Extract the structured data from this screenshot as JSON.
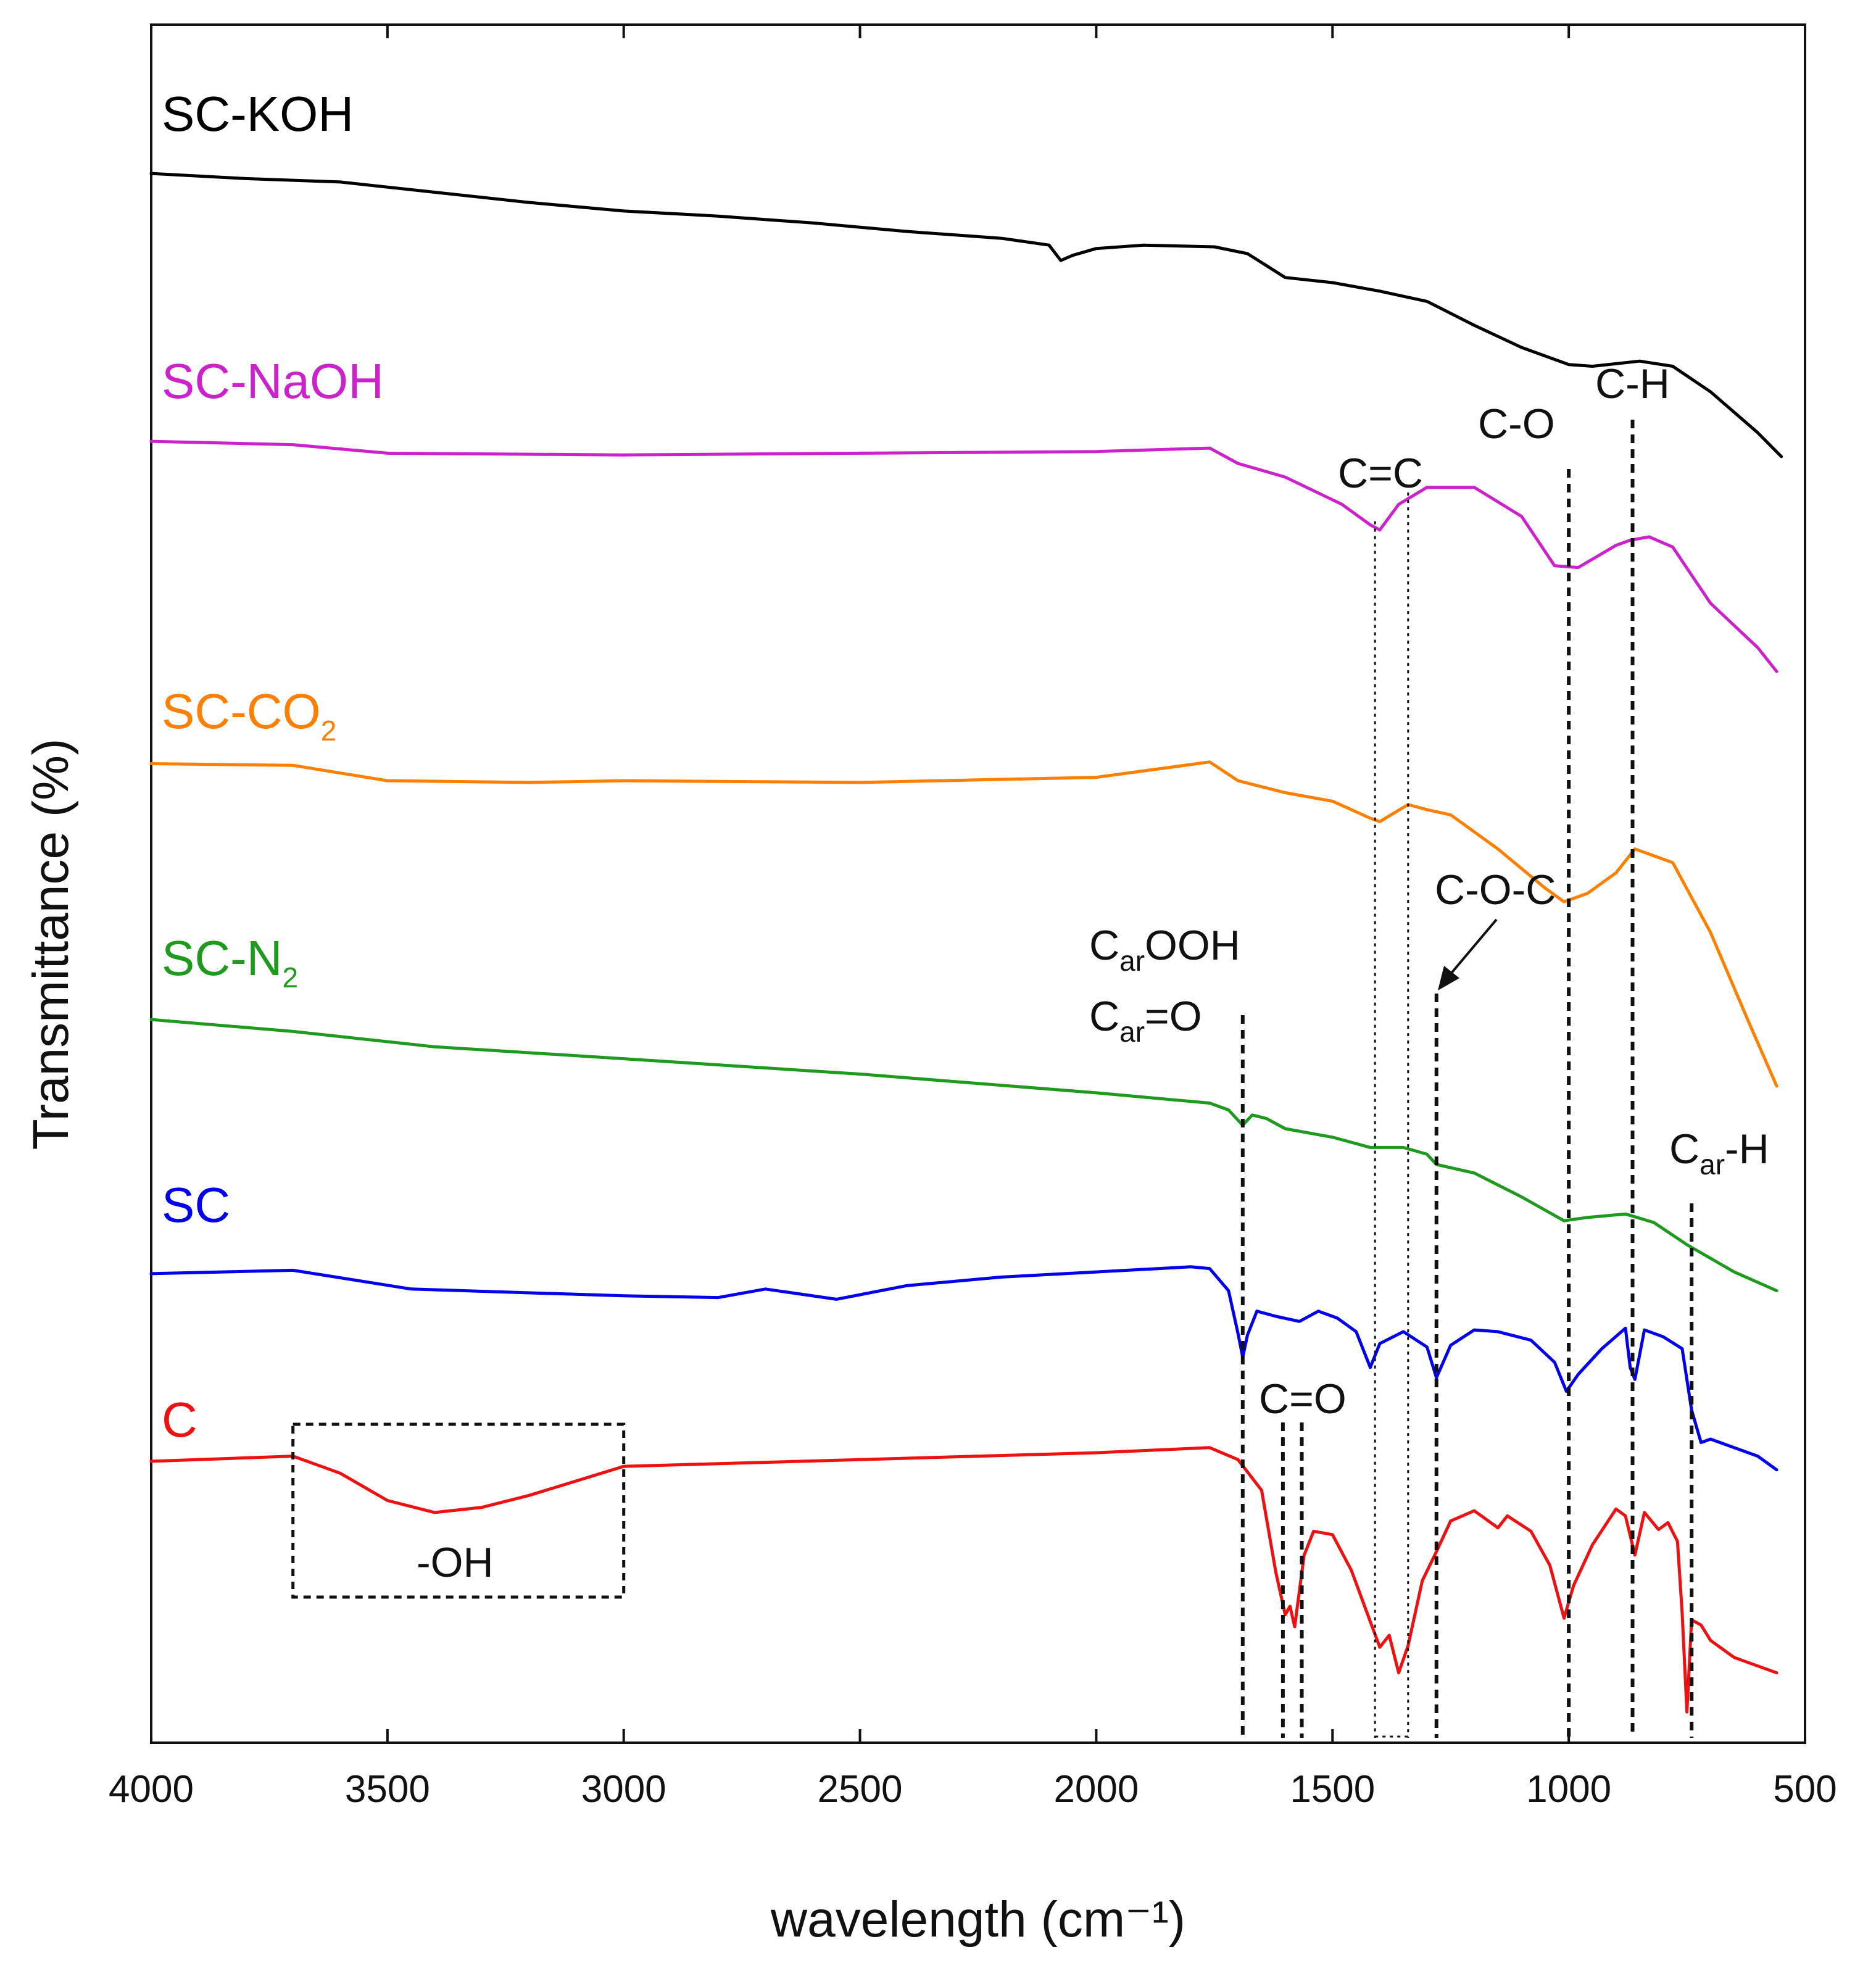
{
  "chart_data": {
    "type": "line",
    "title": "",
    "xlabel": "wavelength (cm⁻¹)",
    "ylabel": "Transmittance (%)",
    "xlim": [
      4000,
      500
    ],
    "xticks": [
      4000,
      3500,
      3000,
      2500,
      2000,
      1500,
      1000,
      500
    ],
    "ylim": [
      0,
      100
    ],
    "y_ticks_shown": false,
    "grid": false,
    "legend": "inline labels on left",
    "series": [
      {
        "name": "SC-KOH",
        "color": "#000000",
        "label": {
          "main": "SC-KOH",
          "sub": ""
        },
        "points": [
          [
            4000,
            92.0
          ],
          [
            3800,
            91.7
          ],
          [
            3600,
            91.5
          ],
          [
            3400,
            90.9
          ],
          [
            3200,
            90.3
          ],
          [
            3000,
            89.8
          ],
          [
            2800,
            89.5
          ],
          [
            2600,
            89.1
          ],
          [
            2400,
            88.6
          ],
          [
            2200,
            88.2
          ],
          [
            2100,
            87.8
          ],
          [
            2075,
            86.9
          ],
          [
            2050,
            87.2
          ],
          [
            2000,
            87.6
          ],
          [
            1900,
            87.8
          ],
          [
            1750,
            87.7
          ],
          [
            1680,
            87.3
          ],
          [
            1600,
            85.9
          ],
          [
            1500,
            85.6
          ],
          [
            1400,
            85.1
          ],
          [
            1300,
            84.5
          ],
          [
            1200,
            83.1
          ],
          [
            1100,
            81.8
          ],
          [
            1000,
            80.8
          ],
          [
            950,
            80.7
          ],
          [
            850,
            81.0
          ],
          [
            780,
            80.7
          ],
          [
            700,
            79.2
          ],
          [
            600,
            76.8
          ],
          [
            550,
            75.4
          ]
        ]
      },
      {
        "name": "SC-NaOH",
        "color": "#cc22cc",
        "label": {
          "main": "SC-NaOH",
          "sub": ""
        },
        "points": [
          [
            4000,
            76.3
          ],
          [
            3700,
            76.1
          ],
          [
            3500,
            75.6
          ],
          [
            3000,
            75.5
          ],
          [
            2500,
            75.6
          ],
          [
            2000,
            75.7
          ],
          [
            1760,
            75.9
          ],
          [
            1700,
            75.0
          ],
          [
            1600,
            74.2
          ],
          [
            1480,
            72.6
          ],
          [
            1420,
            71.4
          ],
          [
            1400,
            71.1
          ],
          [
            1360,
            72.6
          ],
          [
            1300,
            73.6
          ],
          [
            1200,
            73.6
          ],
          [
            1100,
            71.9
          ],
          [
            1030,
            69.0
          ],
          [
            980,
            68.9
          ],
          [
            900,
            70.2
          ],
          [
            870,
            70.5
          ],
          [
            830,
            70.7
          ],
          [
            780,
            70.1
          ],
          [
            700,
            66.8
          ],
          [
            600,
            64.2
          ],
          [
            560,
            62.8
          ]
        ]
      },
      {
        "name": "SC-CO2",
        "color": "#ff8000",
        "label": {
          "main": "SC-CO",
          "sub": "2"
        },
        "points": [
          [
            4000,
            57.4
          ],
          [
            3700,
            57.3
          ],
          [
            3500,
            56.4
          ],
          [
            3200,
            56.3
          ],
          [
            3000,
            56.4
          ],
          [
            2500,
            56.3
          ],
          [
            2000,
            56.6
          ],
          [
            1760,
            57.5
          ],
          [
            1700,
            56.4
          ],
          [
            1600,
            55.7
          ],
          [
            1500,
            55.2
          ],
          [
            1420,
            54.2
          ],
          [
            1400,
            54.0
          ],
          [
            1340,
            55.0
          ],
          [
            1300,
            54.7
          ],
          [
            1250,
            54.4
          ],
          [
            1150,
            52.4
          ],
          [
            1050,
            50.1
          ],
          [
            1010,
            49.3
          ],
          [
            960,
            49.8
          ],
          [
            900,
            51.0
          ],
          [
            860,
            52.4
          ],
          [
            830,
            52.1
          ],
          [
            780,
            51.6
          ],
          [
            700,
            47.5
          ],
          [
            620,
            42.3
          ],
          [
            560,
            38.5
          ]
        ]
      },
      {
        "name": "SC-N2",
        "color": "#1e9a1e",
        "label": {
          "main": "SC-N",
          "sub": "2"
        },
        "points": [
          [
            4000,
            42.4
          ],
          [
            3700,
            41.7
          ],
          [
            3400,
            40.8
          ],
          [
            3000,
            40.1
          ],
          [
            2500,
            39.2
          ],
          [
            2000,
            38.1
          ],
          [
            1760,
            37.5
          ],
          [
            1720,
            37.1
          ],
          [
            1690,
            36.2
          ],
          [
            1670,
            36.8
          ],
          [
            1640,
            36.6
          ],
          [
            1600,
            36.0
          ],
          [
            1500,
            35.5
          ],
          [
            1420,
            34.9
          ],
          [
            1350,
            34.9
          ],
          [
            1300,
            34.5
          ],
          [
            1280,
            33.9
          ],
          [
            1200,
            33.4
          ],
          [
            1100,
            32.0
          ],
          [
            1010,
            30.6
          ],
          [
            960,
            30.8
          ],
          [
            880,
            31.0
          ],
          [
            820,
            30.5
          ],
          [
            750,
            29.2
          ],
          [
            650,
            27.6
          ],
          [
            560,
            26.5
          ]
        ]
      },
      {
        "name": "SC",
        "color": "#0000ee",
        "label": {
          "main": "SC",
          "sub": ""
        },
        "points": [
          [
            4000,
            27.5
          ],
          [
            3700,
            27.7
          ],
          [
            3450,
            26.6
          ],
          [
            3000,
            26.2
          ],
          [
            2800,
            26.1
          ],
          [
            2700,
            26.6
          ],
          [
            2550,
            26.0
          ],
          [
            2400,
            26.8
          ],
          [
            2200,
            27.3
          ],
          [
            2000,
            27.6
          ],
          [
            1800,
            27.9
          ],
          [
            1760,
            27.8
          ],
          [
            1720,
            26.5
          ],
          [
            1700,
            24.0
          ],
          [
            1690,
            22.6
          ],
          [
            1680,
            23.9
          ],
          [
            1660,
            25.3
          ],
          [
            1620,
            25.0
          ],
          [
            1570,
            24.7
          ],
          [
            1530,
            25.3
          ],
          [
            1490,
            24.9
          ],
          [
            1450,
            24.1
          ],
          [
            1420,
            22.0
          ],
          [
            1400,
            23.4
          ],
          [
            1350,
            24.1
          ],
          [
            1300,
            23.2
          ],
          [
            1280,
            21.4
          ],
          [
            1250,
            23.3
          ],
          [
            1200,
            24.2
          ],
          [
            1150,
            24.1
          ],
          [
            1080,
            23.6
          ],
          [
            1030,
            22.3
          ],
          [
            1005,
            20.6
          ],
          [
            980,
            21.6
          ],
          [
            930,
            23.1
          ],
          [
            880,
            24.3
          ],
          [
            870,
            22.0
          ],
          [
            860,
            21.3
          ],
          [
            840,
            24.2
          ],
          [
            800,
            23.8
          ],
          [
            760,
            23.1
          ],
          [
            740,
            19.5
          ],
          [
            720,
            17.6
          ],
          [
            700,
            17.8
          ],
          [
            600,
            16.8
          ],
          [
            560,
            16.0
          ]
        ]
      },
      {
        "name": "C",
        "color": "#ee1111",
        "label": {
          "main": "C",
          "sub": ""
        },
        "points": [
          [
            4000,
            16.5
          ],
          [
            3700,
            16.8
          ],
          [
            3600,
            15.8
          ],
          [
            3500,
            14.2
          ],
          [
            3400,
            13.5
          ],
          [
            3300,
            13.8
          ],
          [
            3200,
            14.5
          ],
          [
            3000,
            16.2
          ],
          [
            2500,
            16.6
          ],
          [
            2000,
            17.0
          ],
          [
            1760,
            17.3
          ],
          [
            1700,
            16.6
          ],
          [
            1650,
            14.8
          ],
          [
            1620,
            10.0
          ],
          [
            1600,
            7.5
          ],
          [
            1590,
            8.0
          ],
          [
            1580,
            6.8
          ],
          [
            1560,
            11.0
          ],
          [
            1540,
            12.4
          ],
          [
            1500,
            12.2
          ],
          [
            1460,
            10.1
          ],
          [
            1420,
            7.1
          ],
          [
            1400,
            5.6
          ],
          [
            1380,
            6.3
          ],
          [
            1360,
            4.1
          ],
          [
            1340,
            5.7
          ],
          [
            1310,
            9.5
          ],
          [
            1280,
            11.2
          ],
          [
            1250,
            13.0
          ],
          [
            1200,
            13.6
          ],
          [
            1150,
            12.6
          ],
          [
            1130,
            13.3
          ],
          [
            1080,
            12.4
          ],
          [
            1040,
            10.4
          ],
          [
            1010,
            7.3
          ],
          [
            990,
            9.2
          ],
          [
            950,
            11.6
          ],
          [
            900,
            13.7
          ],
          [
            880,
            13.3
          ],
          [
            860,
            11.0
          ],
          [
            840,
            13.5
          ],
          [
            810,
            12.5
          ],
          [
            790,
            12.9
          ],
          [
            770,
            11.8
          ],
          [
            760,
            7.6
          ],
          [
            750,
            1.8
          ],
          [
            740,
            7.2
          ],
          [
            720,
            6.9
          ],
          [
            700,
            6.0
          ],
          [
            650,
            5.0
          ],
          [
            560,
            4.1
          ]
        ]
      }
    ],
    "annotations": [
      {
        "text": "C=C",
        "sub": "",
        "after": "",
        "dotted": true,
        "x_lines": [
          1410,
          1340
        ]
      },
      {
        "text": "C-O",
        "sub": "",
        "after": "",
        "dotted": false,
        "x_lines": [
          1000
        ]
      },
      {
        "text": "C-H",
        "sub": "",
        "after": "",
        "dotted": false,
        "x_lines": [
          865
        ]
      },
      {
        "text": "C-O-C",
        "sub": "",
        "after": "",
        "dotted": false,
        "x_lines": [
          1280
        ]
      },
      {
        "text": "C",
        "sub": "ar",
        "after": "OOH",
        "dotted": false,
        "x_lines": []
      },
      {
        "text": "C",
        "sub": "ar",
        "after": "=O",
        "dotted": false,
        "x_lines": [
          1690
        ]
      },
      {
        "text": "C",
        "sub": "ar",
        "after": "-H",
        "dotted": false,
        "x_lines": [
          740
        ]
      },
      {
        "text": "C=O",
        "sub": "",
        "after": "",
        "dotted": false,
        "x_lines": [
          1605,
          1565
        ]
      },
      {
        "text": "-OH",
        "sub": "",
        "after": "",
        "dotted": false,
        "x_range": [
          3700,
          3000
        ]
      }
    ]
  }
}
